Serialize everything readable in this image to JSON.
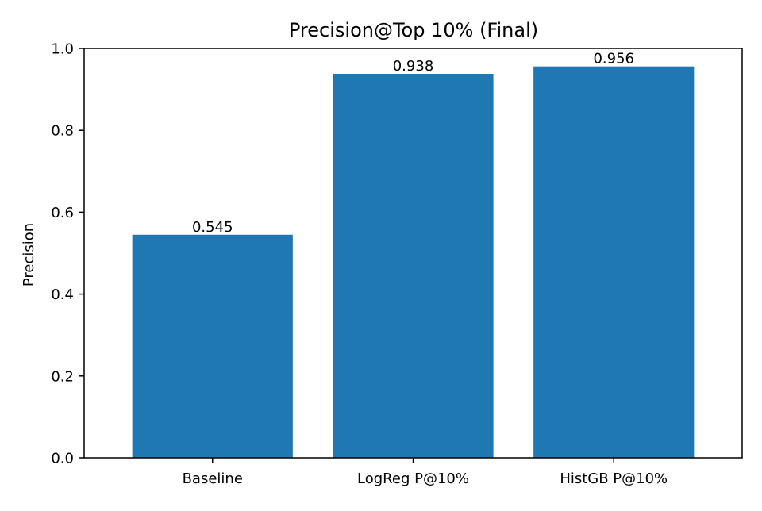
{
  "chart_data": {
    "type": "bar",
    "title": "Precision@Top 10% (Final)",
    "xlabel": "",
    "ylabel": "Precision",
    "categories": [
      "Baseline",
      "LogReg P@10%",
      "HistGB P@10%"
    ],
    "values": [
      0.545,
      0.938,
      0.956
    ],
    "value_labels": [
      "0.545",
      "0.938",
      "0.956"
    ],
    "ylim": [
      0.0,
      1.0
    ],
    "yticks": [
      0.0,
      0.2,
      0.4,
      0.6,
      0.8,
      1.0
    ],
    "ytick_labels": [
      "0.0",
      "0.2",
      "0.4",
      "0.6",
      "0.8",
      "1.0"
    ],
    "grid": false,
    "legend": "none",
    "bar_color": "#1f77b4"
  }
}
